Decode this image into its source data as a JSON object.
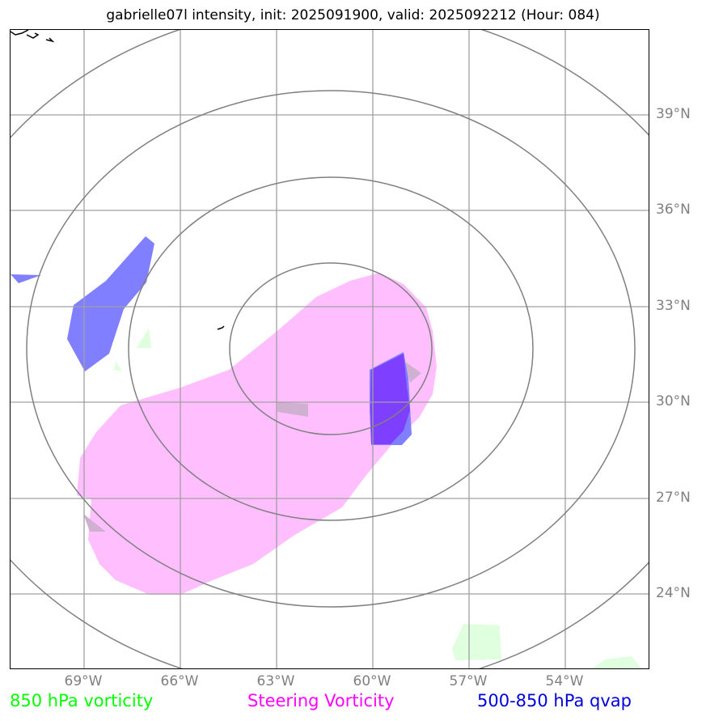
{
  "title": "gabrielle07l intensity, init: 2025091900, valid: 2025092212 (Hour: 084)",
  "map": {
    "lon_labels": [
      "69°W",
      "66°W",
      "63°W",
      "60°W",
      "57°W",
      "54°W"
    ],
    "lat_labels": [
      "39°N",
      "36°N",
      "33°N",
      "30°N",
      "27°N",
      "24°N"
    ]
  },
  "legend": {
    "vort850": {
      "label": "850 hPa vorticity",
      "color": "#00ff00"
    },
    "steering": {
      "label": "Steering Vorticity",
      "color": "#ff00ff"
    },
    "qvap": {
      "label": "500-850 hPa qvap",
      "color": "#0000dd"
    }
  },
  "colors": {
    "steering_fill": "#ffbfff",
    "qvap_fill": "#7f7fff",
    "overlap_fill": "#7f3fff",
    "vort_fill": "#dfffdf",
    "grid": "#a0a0a0",
    "rings": "#808080"
  }
}
